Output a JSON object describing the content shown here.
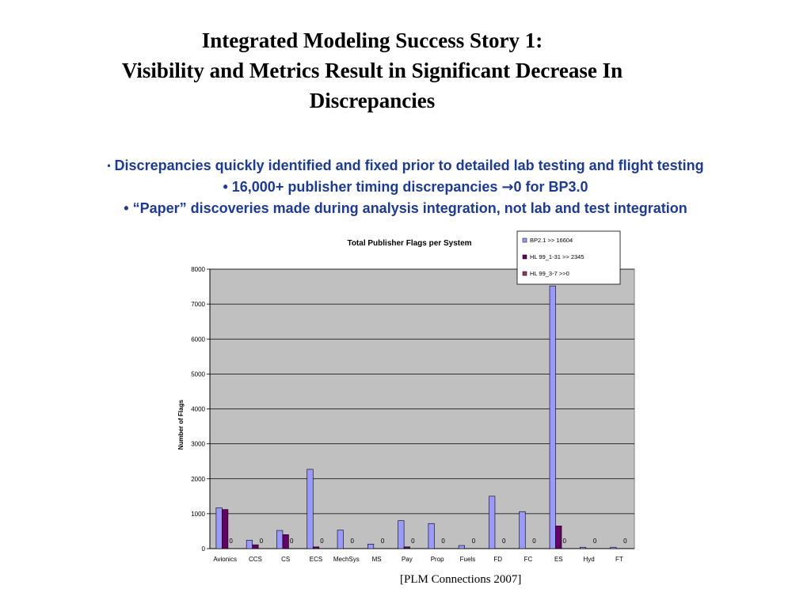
{
  "slide": {
    "title_line1": "Integrated Modeling Success Story 1:",
    "title_line2": "Visibility and Metrics Result in Significant Decrease In",
    "title_line3": "Discrepancies",
    "bullets": [
      {
        "bullet": "•",
        "text": "Discrepancies quickly identified and fixed prior to detailed lab testing and flight testing"
      },
      {
        "bullet": "•",
        "text": "16,000+ publisher timing discrepancies ",
        "arrow": "→",
        "after": "0 for BP3.0"
      },
      {
        "bullet": "•",
        "text": "“Paper” discoveries made during analysis integration, not lab and test integration"
      }
    ],
    "caption": "[PLM Connections 2007]"
  },
  "chart_data": {
    "type": "bar",
    "title": "Total Publisher Flags per System",
    "xlabel": "",
    "ylabel": "Number of Flags",
    "ylim": [
      0,
      8000
    ],
    "yticks": [
      0,
      1000,
      2000,
      3000,
      4000,
      5000,
      6000,
      7000,
      8000
    ],
    "grid": true,
    "legend_position": "top-right",
    "categories": [
      "Avionics",
      "CCS",
      "CS",
      "ECS",
      "MechSys",
      "MS",
      "Pay",
      "Prop",
      "Fuels",
      "FD",
      "FC",
      "ES",
      "Hyd",
      "FT"
    ],
    "series": [
      {
        "name": "BP2.1 >> 16604",
        "color": "#9999ff",
        "values": [
          1170,
          240,
          520,
          2270,
          530,
          130,
          800,
          720,
          90,
          1500,
          1060,
          7520,
          40,
          40
        ]
      },
      {
        "name": "HL 99_1-31 >> 2345",
        "color": "#660066",
        "values": [
          1120,
          110,
          400,
          50,
          0,
          0,
          50,
          0,
          0,
          0,
          0,
          650,
          0,
          0
        ]
      },
      {
        "name": "HL 99_3-7  >>0",
        "color": "#993366",
        "values": [
          0,
          0,
          0,
          0,
          0,
          0,
          0,
          0,
          0,
          0,
          0,
          0,
          0,
          0
        ]
      }
    ],
    "zero_labels": [
      "0",
      "0",
      "0",
      "0",
      "0",
      "0",
      "0",
      "0",
      "0",
      "0",
      "0",
      "0",
      "0",
      "0"
    ],
    "plot_background": "#c0c0c0"
  }
}
